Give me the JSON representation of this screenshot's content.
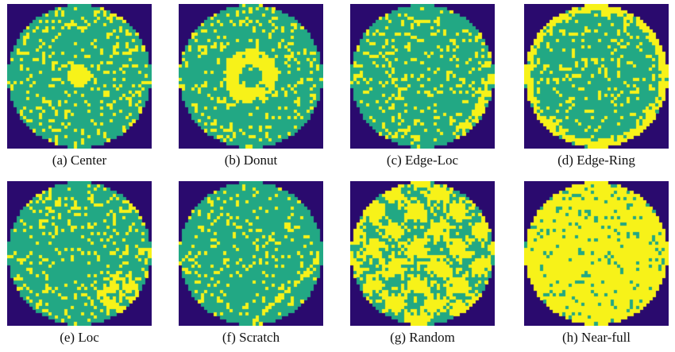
{
  "colors": {
    "background": "#2a0a6e",
    "wafer": "#22a884",
    "defect": "#f7f219"
  },
  "panels": [
    {
      "caption": "(a) Center",
      "pattern": "center",
      "defect_density": 0.18
    },
    {
      "caption": "(b) Donut",
      "pattern": "donut",
      "defect_density": 0.18
    },
    {
      "caption": "(c) Edge-Loc",
      "pattern": "edge-loc",
      "defect_density": 0.18
    },
    {
      "caption": "(d) Edge-Ring",
      "pattern": "edge-ring",
      "defect_density": 0.16
    },
    {
      "caption": "(e) Loc",
      "pattern": "loc",
      "defect_density": 0.18
    },
    {
      "caption": "(f) Scratch",
      "pattern": "scratch",
      "defect_density": 0.15
    },
    {
      "caption": "(g) Random",
      "pattern": "random",
      "defect_density": 0.42
    },
    {
      "caption": "(h) Near-full",
      "pattern": "near-full",
      "defect_density": 0.9
    }
  ]
}
